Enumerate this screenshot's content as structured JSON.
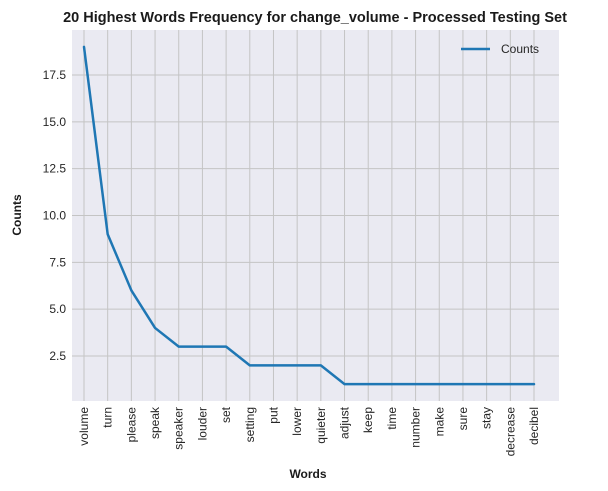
{
  "chart_data": {
    "type": "line",
    "title": "20 Highest Words Frequency for change_volume - Processed Testing Set",
    "xlabel": "Words",
    "ylabel": "Counts",
    "categories": [
      "volume",
      "turn",
      "please",
      "speak",
      "speaker",
      "louder",
      "set",
      "setting",
      "put",
      "lower",
      "quieter",
      "adjust",
      "keep",
      "time",
      "number",
      "make",
      "sure",
      "stay",
      "decrease",
      "decibel"
    ],
    "series": [
      {
        "name": "Counts",
        "values": [
          19,
          9,
          6,
          4,
          3,
          3,
          3,
          2,
          2,
          2,
          2,
          1,
          1,
          1,
          1,
          1,
          1,
          1,
          1,
          1
        ]
      }
    ],
    "y_ticks": [
      "2.5",
      "5.0",
      "7.5",
      "10.0",
      "12.5",
      "15.0",
      "17.5"
    ],
    "ylim": [
      0.1,
      19.9
    ],
    "grid": true,
    "legend_position": "top-right",
    "colors": {
      "line": "#1f77b4",
      "plot_bg": "#eaeaf2",
      "grid": "#c4c4c4"
    }
  }
}
